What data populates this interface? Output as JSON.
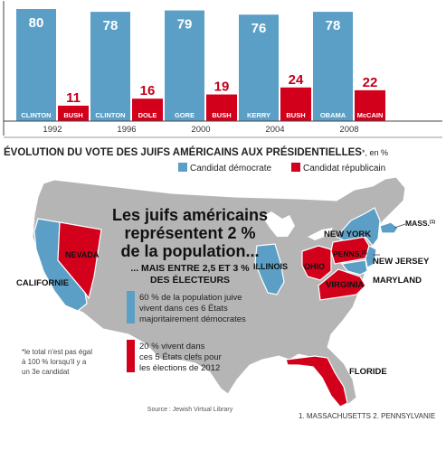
{
  "chart_data": {
    "type": "bar",
    "title": "ÉVOLUTION DU VOTE DES JUIFS AMÉRICAINS AUX PRÉSIDENTIELLES",
    "title_suffix": "*, en %",
    "categories": [
      "1992",
      "1996",
      "2000",
      "2004",
      "2008"
    ],
    "series": [
      {
        "name": "Candidat démocrate",
        "color": "#5b9fc6",
        "values": [
          80,
          78,
          79,
          76,
          78
        ],
        "candidates": [
          "CLINTON",
          "CLINTON",
          "GORE",
          "KERRY",
          "OBAMA"
        ]
      },
      {
        "name": "Candidat républicain",
        "color": "#d3001c",
        "values": [
          11,
          16,
          19,
          24,
          22
        ],
        "candidates": [
          "BUSH",
          "DOLE",
          "BUSH",
          "BUSH",
          "McCAIN"
        ]
      }
    ],
    "ylim": [
      0,
      80
    ]
  },
  "map": {
    "headline": [
      "Les juifs américains",
      "représentent 2 %",
      "de la population..."
    ],
    "subhead": [
      "... MAIS ENTRE 2,5 ET 3 %",
      "DES ÉLECTEURS"
    ],
    "note_blue": [
      "60 % de la population juive",
      "vivent dans ces 6 États",
      "majoritairement démocrates"
    ],
    "note_red": [
      "20 % vivent dans",
      "ces 5 États clefs pour",
      "les élections de 2012"
    ],
    "footnote": [
      "*le total n'est pas égal",
      "à 100 % lorsqu'il y a",
      "un 3e candidat"
    ],
    "source": "Source : Jewish Virtual Library",
    "notes_bottom": "1. MASSACHUSETTS 2. PENNSYLVANIE",
    "state_labels": {
      "california": "CALIFORNIE",
      "nevada": "NEVADA",
      "illinois": "ILLINOIS",
      "ohio": "OHIO",
      "pennsylvania": "PENNS.",
      "new_york": "NEW YORK",
      "massachusetts": "MASS.",
      "new_jersey": "NEW JERSEY",
      "maryland": "MARYLAND",
      "virginia": "VIRGINIA",
      "florida": "FLORIDE"
    },
    "colors": {
      "dem": "#5b9fc6",
      "rep": "#d3001c",
      "land": "#b5b5b5",
      "border": "#ffffff"
    }
  }
}
